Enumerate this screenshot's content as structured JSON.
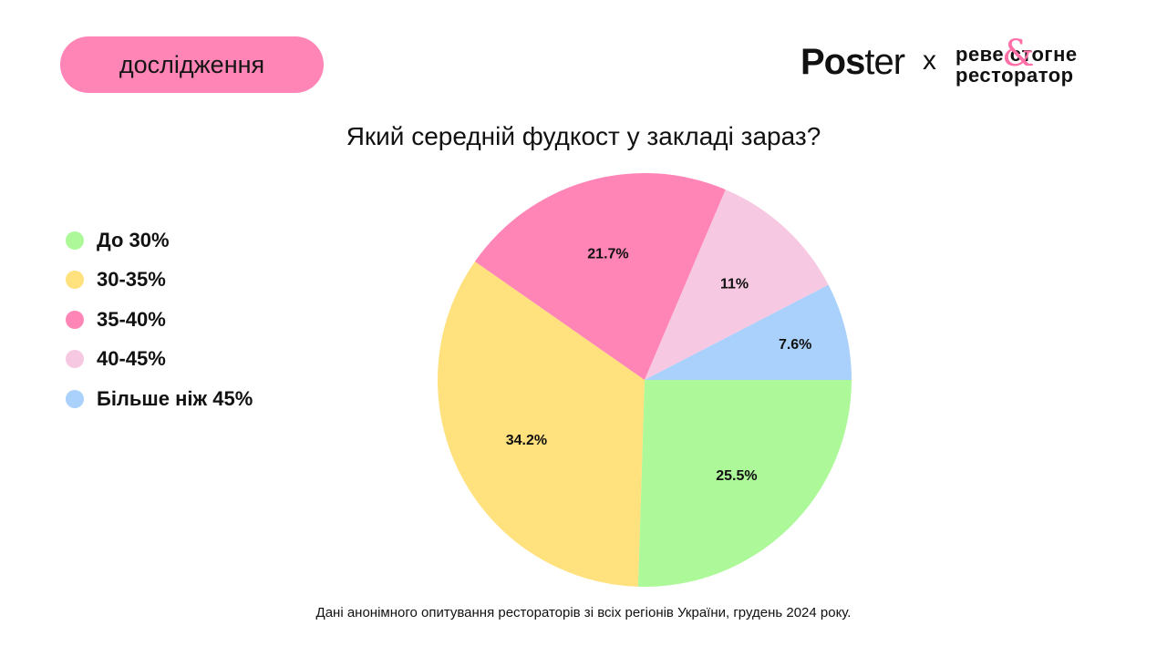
{
  "badge": {
    "label": "дослідження"
  },
  "brand": {
    "poster_bold": "Pos",
    "poster_thin": "ter",
    "separator": "x",
    "partner_line1": "реве стогне",
    "partner_line2": "ресторатор",
    "partner_amp": "&",
    "accent_color": "#ff6fa8"
  },
  "chart_data": {
    "type": "pie",
    "title": "Який середній фудкост у закладі зараз?",
    "categories": [
      "До 30%",
      "30-35%",
      "35-40%",
      "40-45%",
      "Більше ніж 45%"
    ],
    "values": [
      25.5,
      34.2,
      21.7,
      11,
      7.6
    ],
    "value_labels": [
      "25.5%",
      "34.2%",
      "21.7%",
      "11%",
      "7.6%"
    ],
    "colors": [
      "#adf99a",
      "#ffe17e",
      "#ff85b6",
      "#f7c8e2",
      "#a9d1fc"
    ],
    "legend_position": "left",
    "start_direction": "east",
    "direction": "clockwise"
  },
  "footnote": "Дані анонімного опитування рестораторів зі всіх регіонів України, грудень 2024 року."
}
